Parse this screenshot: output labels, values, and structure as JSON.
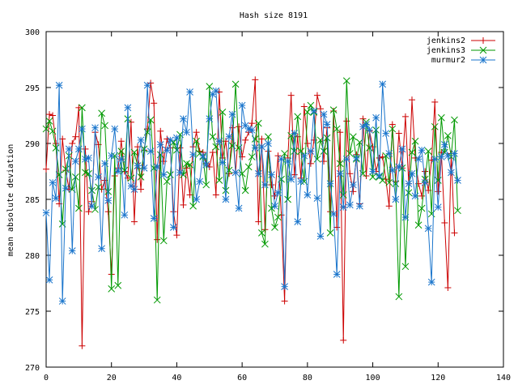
{
  "chart_data": {
    "type": "line",
    "title": "Hash size 8191",
    "xlabel": "",
    "ylabel": "mean absolute deviation",
    "xlim": [
      0,
      140
    ],
    "ylim": [
      270,
      300
    ],
    "xticks": [
      0,
      20,
      40,
      60,
      80,
      100,
      120,
      140
    ],
    "yticks": [
      270,
      275,
      280,
      285,
      290,
      295,
      300
    ],
    "grid": false,
    "legend_position": "top-right",
    "series": [
      {
        "name": "jenkins2",
        "color": "#cc0000",
        "marker": "plus",
        "values": [
          287.7,
          292.6,
          292.5,
          290.0,
          284.6,
          290.4,
          287.6,
          285.9,
          290.0,
          290.6,
          293.2,
          271.9,
          289.5,
          283.9,
          284.8,
          291.0,
          289.9,
          285.9,
          286.7,
          283.9,
          278.3,
          287.1,
          287.8,
          290.2,
          287.5,
          286.9,
          291.9,
          283.0,
          289.7,
          285.9,
          289.4,
          291.3,
          295.4,
          293.6,
          281.4,
          291.1,
          288.4,
          290.4,
          289.6,
          283.9,
          281.8,
          289.6,
          284.5,
          287.8,
          285.4,
          289.7,
          291.0,
          289.3,
          289.2,
          288.2,
          287.9,
          289.2,
          285.4,
          294.6,
          288.7,
          290.2,
          287.3,
          291.4,
          287.4,
          291.5,
          288.8,
          290.3,
          291.0,
          291.8,
          295.7,
          283.0,
          290.4,
          282.3,
          289.3,
          286.3,
          285.3,
          288.9,
          283.6,
          275.9,
          288.7,
          294.3,
          287.2,
          290.6,
          286.9,
          293.3,
          290.0,
          288.2,
          290.3,
          294.3,
          293.1,
          288.4,
          291.4,
          283.9,
          292.9,
          282.5,
          291.0,
          272.4,
          292.0,
          287.3,
          285.7,
          289.0,
          284.6,
          292.2,
          287.1,
          291.1,
          289.7,
          287.5,
          288.7,
          288.8,
          286.8,
          284.4,
          291.7,
          286.6,
          290.9,
          287.8,
          292.4,
          286.4,
          293.9,
          288.7,
          286.4,
          285.3,
          287.5,
          285.8,
          288.5,
          293.7,
          285.7,
          289.2,
          282.9,
          277.1,
          289.1,
          282.0
        ],
        "comment_x_start": 0
      },
      {
        "name": "jenkins3",
        "color": "#009900",
        "marker": "x",
        "values": [
          291.3,
          292.0,
          291.1,
          289.6,
          287.2,
          282.8,
          287.7,
          288.9,
          285.9,
          287.0,
          284.2,
          293.2,
          287.4,
          287.3,
          285.8,
          284.1,
          286.1,
          292.7,
          291.6,
          285.7,
          277.0,
          288.9,
          277.3,
          289.3,
          287.6,
          292.2,
          286.9,
          289.2,
          288.0,
          287.0,
          289.5,
          291.0,
          292.1,
          287.8,
          276.0,
          289.0,
          281.3,
          286.6,
          287.2,
          290.1,
          289.4,
          290.8,
          287.2,
          288.2,
          288.1,
          284.4,
          290.2,
          289.1,
          288.8,
          286.3,
          295.1,
          290.6,
          289.7,
          286.7,
          292.8,
          285.8,
          287.6,
          289.8,
          295.3,
          289.6,
          287.3,
          285.8,
          287.9,
          288.8,
          290.4,
          291.8,
          282.0,
          281.0,
          290.6,
          284.2,
          282.5,
          283.4,
          286.8,
          289.1,
          285.0,
          290.7,
          289.3,
          292.4,
          289.3,
          286.6,
          292.8,
          293.4,
          292.8,
          288.6,
          290.3,
          289.3,
          290.5,
          282.0,
          293.0,
          291.3,
          288.2,
          285.4,
          295.6,
          289.1,
          290.6,
          288.6,
          290.1,
          287.3,
          291.9,
          289.6,
          287.0,
          291.2,
          287.0,
          286.7,
          288.9,
          286.5,
          291.3,
          286.4,
          276.3,
          287.8,
          279.0,
          285.6,
          289.2,
          290.2,
          282.7,
          284.2,
          286.8,
          289.3,
          283.7,
          291.5,
          286.7,
          292.3,
          289.2,
          290.7,
          288.8,
          292.1,
          284.0
        ]
      },
      {
        "name": "murmur2",
        "color": "#1a75cc",
        "marker": "star",
        "values": [
          283.8,
          277.8,
          286.5,
          285.1,
          295.2,
          275.9,
          286.0,
          289.5,
          280.4,
          288.4,
          289.5,
          291.3,
          288.6,
          288.7,
          284.4,
          291.4,
          287.0,
          280.6,
          288.2,
          284.9,
          288.9,
          291.3,
          287.5,
          288.6,
          283.6,
          293.2,
          286.2,
          285.9,
          288.0,
          290.3,
          287.8,
          295.2,
          289.3,
          283.3,
          287.9,
          289.9,
          287.2,
          289.4,
          290.3,
          282.5,
          290.5,
          287.4,
          292.2,
          291.0,
          294.6,
          289.0,
          285.0,
          286.6,
          288.9,
          288.1,
          292.2,
          294.4,
          294.7,
          290.2,
          288.3,
          285.0,
          290.6,
          292.6,
          287.4,
          284.2,
          293.4,
          291.6,
          291.3,
          291.2,
          289.6,
          287.3,
          289.7,
          286.3,
          290.0,
          287.2,
          284.4,
          285.6,
          288.6,
          277.2,
          288.4,
          286.8,
          290.9,
          283.0,
          286.6,
          288.9,
          285.4,
          289.3,
          292.9,
          285.1,
          281.7,
          292.6,
          291.7,
          286.4,
          283.7,
          278.3,
          287.3,
          284.3,
          288.6,
          284.5,
          286.3,
          288.7,
          284.4,
          291.5,
          291.7,
          291.2,
          287.5,
          292.3,
          287.1,
          295.3,
          290.9,
          289.1,
          287.6,
          285.0,
          287.9,
          289.5,
          283.4,
          286.4,
          287.3,
          285.3,
          288.6,
          289.4,
          286.5,
          282.4,
          277.6,
          288.6,
          284.3,
          288.8,
          289.9,
          288.9,
          287.4,
          289.1,
          286.7
        ]
      }
    ]
  }
}
